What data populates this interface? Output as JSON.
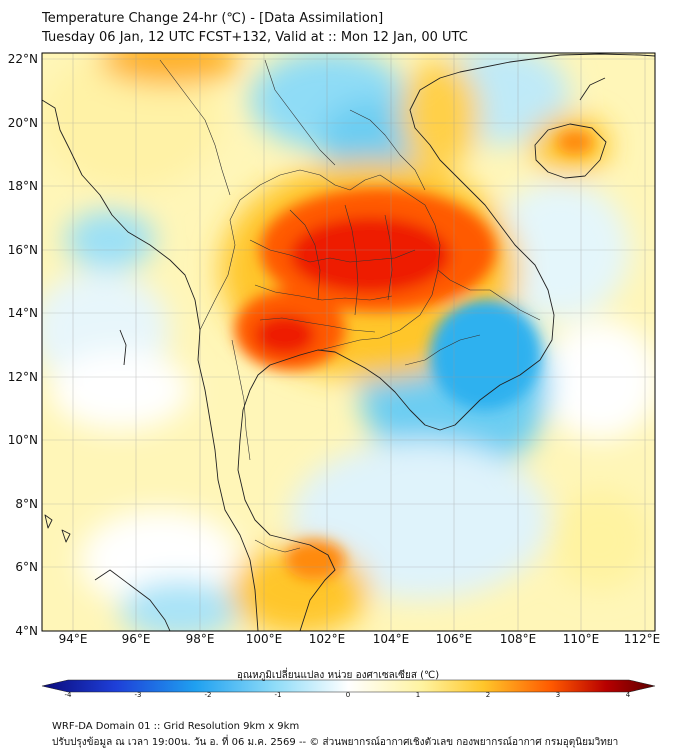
{
  "header": {
    "title_line1": "Temperature Change 24-hr (℃) - [Data Assimilation]",
    "title_line2": "Tuesday 06 Jan, 12 UTC FCST+132, Valid at :: Mon 12 Jan, 00 UTC"
  },
  "map": {
    "lat_labels": [
      "22°N",
      "20°N",
      "18°N",
      "16°N",
      "14°N",
      "12°N",
      "10°N",
      "8°N",
      "6°N",
      "4°N"
    ],
    "lon_labels": [
      "94°E",
      "96°E",
      "98°E",
      "100°E",
      "102°E",
      "104°E",
      "106°E",
      "108°E",
      "110°E",
      "112°E"
    ],
    "extent": {
      "lon_min": 93,
      "lon_max": 112.3,
      "lat_min": 4,
      "lat_max": 22.2
    }
  },
  "colorbar": {
    "title": "อุณหภูมิเปลี่ยนแปลง หน่วย องศาเซลเซียส (℃)",
    "ticks": [
      "-4",
      "-3",
      "-2",
      "-1",
      "0",
      "1",
      "2",
      "3",
      "4"
    ],
    "range": [
      -4,
      4
    ],
    "colors": [
      "#0a0a7a",
      "#1e3fd8",
      "#1fa0f0",
      "#8fdcf8",
      "#ffffff",
      "#fff3a0",
      "#ffc62a",
      "#ff5a00",
      "#b80000",
      "#5a0000"
    ]
  },
  "footer": {
    "line1": "WRF-DA Domain 01 :: Grid Resolution 9km x 9km",
    "line2": "ปรับปรุงข้อมูล ณ เวลา 19:00น. วัน อ. ที่ 06 ม.ค. 2569 -- © ส่วนพยากรณ์อากาศเชิงตัวเลข กองพยากรณ์อากาศ กรมอุตุนิยมวิทยา"
  }
}
